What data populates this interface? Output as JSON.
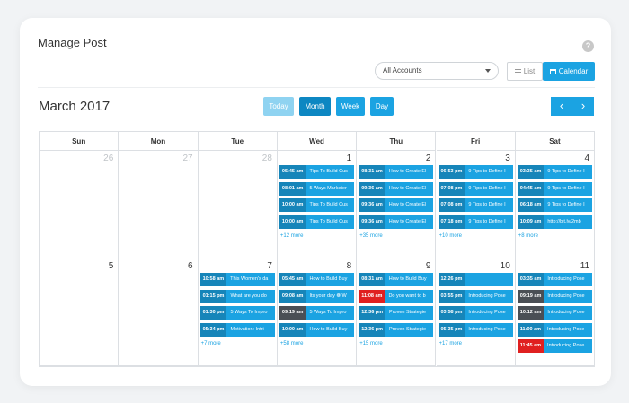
{
  "header": {
    "title": "Manage Post",
    "help_icon": "?"
  },
  "toolbar": {
    "accounts_select": "All Accounts",
    "list_label": "List",
    "calendar_label": "Calendar"
  },
  "calendar": {
    "month_title": "March 2017",
    "views": [
      "Today",
      "Month",
      "Week",
      "Day"
    ],
    "prev": "‹",
    "next": "›",
    "weekdays": [
      "Sun",
      "Mon",
      "Tue",
      "Wed",
      "Thu",
      "Fri",
      "Sat"
    ],
    "colors": {
      "accent": "#1ba3e2",
      "accent_dark": "#0d87c2",
      "accent_light": "#8fd3f1",
      "dark_time": "#4a4f55",
      "alert_time": "#e02020"
    },
    "weeks": [
      [
        {
          "day": "26",
          "muted": true,
          "events": [],
          "more": ""
        },
        {
          "day": "27",
          "muted": true,
          "events": [],
          "more": ""
        },
        {
          "day": "28",
          "muted": true,
          "events": [],
          "more": ""
        },
        {
          "day": "1",
          "muted": false,
          "events": [
            {
              "time": "05:45 am",
              "text": "Tips To Build Cus"
            },
            {
              "time": "08:01 am",
              "text": "5 Ways Marketer"
            },
            {
              "time": "10:00 am",
              "text": "Tips To Build Cus"
            },
            {
              "time": "10:00 am",
              "text": "Tips To Build Cus"
            }
          ],
          "more": "+12 more"
        },
        {
          "day": "2",
          "muted": false,
          "events": [
            {
              "time": "08:31 am",
              "text": "How to Create El"
            },
            {
              "time": "09:36 am",
              "text": "How to Create El"
            },
            {
              "time": "09:36 am",
              "text": "How to Create El"
            },
            {
              "time": "09:36 am",
              "text": "How to Create El"
            }
          ],
          "more": "+35 more"
        },
        {
          "day": "3",
          "muted": false,
          "events": [
            {
              "time": "06:53 pm",
              "text": "9 Tips to Define I"
            },
            {
              "time": "07:08 pm",
              "text": "9 Tips to Define I"
            },
            {
              "time": "07:08 pm",
              "text": "9 Tips to Define I"
            },
            {
              "time": "07:18 pm",
              "text": "9 Tips to Define I"
            }
          ],
          "more": "+10 more"
        },
        {
          "day": "4",
          "muted": false,
          "events": [
            {
              "time": "03:35 am",
              "text": "9 Tips to Define I"
            },
            {
              "time": "04:45 am",
              "text": "9 Tips to Define I"
            },
            {
              "time": "06:18 am",
              "text": "9 Tips to Define I"
            },
            {
              "time": "10:09 am",
              "text": "http://bit.ly/2mb"
            }
          ],
          "more": "+8 more"
        }
      ],
      [
        {
          "day": "5",
          "muted": false,
          "events": [],
          "more": ""
        },
        {
          "day": "6",
          "muted": false,
          "events": [],
          "more": ""
        },
        {
          "day": "7",
          "muted": false,
          "events": [
            {
              "time": "10:58 am",
              "text": "This Women's da"
            },
            {
              "time": "01:15 pm",
              "text": "What are you do"
            },
            {
              "time": "01:30 pm",
              "text": "5 Ways To Impro"
            },
            {
              "time": "05:34 pm",
              "text": "Motivation: Intri"
            }
          ],
          "more": "+7 more"
        },
        {
          "day": "8",
          "muted": false,
          "events": [
            {
              "time": "05:45 am",
              "text": "How to Build Buy"
            },
            {
              "time": "09:08 am",
              "text": "Its your day ❁ W"
            },
            {
              "time": "09:19 am",
              "text": "5 Ways To Impro",
              "time_style": "dark"
            },
            {
              "time": "10:00 am",
              "text": "How to Build Buy"
            }
          ],
          "more": "+58 more"
        },
        {
          "day": "9",
          "muted": false,
          "events": [
            {
              "time": "08:31 am",
              "text": "How to Build Buy"
            },
            {
              "time": "11:08 am",
              "text": "Do you want to b",
              "time_style": "alert"
            },
            {
              "time": "12:36 pm",
              "text": "Proven Strategie"
            },
            {
              "time": "12:36 pm",
              "text": "Proven Strategie"
            }
          ],
          "more": "+15 more"
        },
        {
          "day": "10",
          "muted": false,
          "events": [
            {
              "time": "12:26 pm",
              "text": ""
            },
            {
              "time": "03:55 pm",
              "text": "Introducing Pose"
            },
            {
              "time": "03:58 pm",
              "text": "Introducing Pose"
            },
            {
              "time": "05:35 pm",
              "text": "Introducing Pose"
            }
          ],
          "more": "+17 more"
        },
        {
          "day": "11",
          "muted": false,
          "events": [
            {
              "time": "03:35 am",
              "text": "Introducing Pose"
            },
            {
              "time": "09:19 am",
              "text": "Introducing Pose",
              "time_style": "dark"
            },
            {
              "time": "10:12 am",
              "text": "Introducing Pose",
              "time_style": "dark"
            },
            {
              "time": "11:00 am",
              "text": "Introducing Pose"
            },
            {
              "time": "11:45 am",
              "text": "Introducing Pose",
              "time_style": "alert"
            }
          ],
          "more": ""
        }
      ]
    ]
  }
}
